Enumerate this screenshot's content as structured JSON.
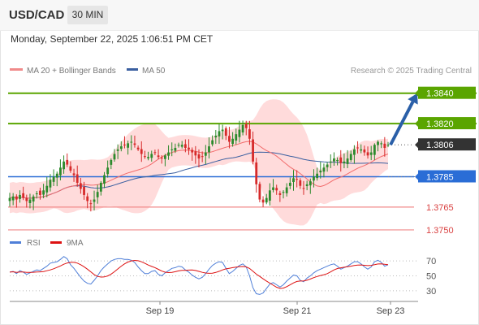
{
  "header": {
    "symbol": "USD/CAD",
    "timeframe": "30 MIN",
    "datetime": "Monday, September 22, 2025 1:06:51 PM CET"
  },
  "legend": {
    "ma20_label": "MA 20 + Bollinger Bands",
    "ma50_label": "MA 50",
    "credit": "Research © 2025 Trading Central"
  },
  "colors": {
    "resistance": "#5aa500",
    "support": "#f08a8a",
    "pivot": "#2a6dd6",
    "current": "#333333",
    "arrow": "#2a5fa8",
    "candle_up": "#2c8a2c",
    "candle_down": "#d62a2a",
    "ma20": "#f26b6b",
    "ma50": "#3a5fa0",
    "bands": "#ffd2d2",
    "rsi": "#4f7fd8",
    "rsi_ma": "#dd1111"
  },
  "chart_data": [
    {
      "type": "candlestick",
      "title": "USD/CAD 30 MIN",
      "ylim": [
        1.3743,
        1.385
      ],
      "x_ticks": [
        "Sep 19",
        "Sep 21",
        "Sep 23"
      ],
      "legend": [
        "MA 20 + Bollinger Bands",
        "MA 50"
      ],
      "levels": [
        {
          "value": 1.384,
          "label": "1.3840",
          "kind": "resistance"
        },
        {
          "value": 1.382,
          "label": "1.3820",
          "kind": "resistance"
        },
        {
          "value": 1.3806,
          "label": "1.3806",
          "kind": "current"
        },
        {
          "value": 1.3785,
          "label": "1.3785",
          "kind": "pivot"
        },
        {
          "value": 1.3765,
          "label": "1.3765",
          "kind": "support"
        },
        {
          "value": 1.375,
          "label": "1.3750",
          "kind": "support"
        }
      ],
      "close_series": [
        1.3771,
        1.3772,
        1.377,
        1.3773,
        1.3771,
        1.3769,
        1.377,
        1.3772,
        1.3774,
        1.3773,
        1.3776,
        1.3779,
        1.3783,
        1.3785,
        1.3787,
        1.3791,
        1.3795,
        1.3793,
        1.3789,
        1.3786,
        1.3781,
        1.3777,
        1.3773,
        1.3769,
        1.3767,
        1.377,
        1.3775,
        1.3781,
        1.3786,
        1.3791,
        1.3796,
        1.38,
        1.3803,
        1.3805,
        1.3806,
        1.3807,
        1.3808,
        1.3806,
        1.3803,
        1.38,
        1.3798,
        1.3798,
        1.38,
        1.3801,
        1.3798,
        1.3797,
        1.3799,
        1.3801,
        1.3803,
        1.3804,
        1.3806,
        1.3806,
        1.3804,
        1.3803,
        1.3801,
        1.3799,
        1.3797,
        1.3798,
        1.3801,
        1.3805,
        1.3809,
        1.3812,
        1.3815,
        1.3816,
        1.3812,
        1.3808,
        1.381,
        1.3813,
        1.3816,
        1.3819,
        1.3817,
        1.381,
        1.3795,
        1.378,
        1.377,
        1.3768,
        1.3771,
        1.3776,
        1.3778,
        1.3776,
        1.3773,
        1.3775,
        1.3778,
        1.3781,
        1.3784,
        1.3783,
        1.3779,
        1.3777,
        1.378,
        1.3782,
        1.3785,
        1.3787,
        1.3789,
        1.3791,
        1.3793,
        1.3795,
        1.3797,
        1.3796,
        1.3794,
        1.3795,
        1.3797,
        1.38,
        1.3803,
        1.3804,
        1.3803,
        1.3801,
        1.3799,
        1.3801,
        1.3806,
        1.3808,
        1.3807,
        1.3804,
        1.3806
      ],
      "rsi": {
        "label": "RSI",
        "ma_label": "9MA",
        "ylim": [
          20,
          80
        ],
        "ticks": [
          70,
          50,
          30
        ],
        "values": [
          55,
          56,
          53,
          57,
          55,
          52,
          54,
          56,
          58,
          57,
          60,
          63,
          67,
          68,
          69,
          72,
          76,
          73,
          65,
          60,
          54,
          48,
          43,
          40,
          39,
          44,
          50,
          57,
          62,
          66,
          70,
          72,
          73,
          73,
          72,
          72,
          71,
          68,
          62,
          57,
          53,
          53,
          56,
          57,
          52,
          50,
          54,
          57,
          60,
          61,
          63,
          62,
          58,
          55,
          51,
          48,
          46,
          48,
          53,
          59,
          64,
          67,
          69,
          68,
          60,
          53,
          56,
          60,
          64,
          66,
          62,
          50,
          34,
          26,
          25,
          27,
          33,
          39,
          41,
          38,
          35,
          38,
          43,
          47,
          51,
          50,
          44,
          42,
          47,
          50,
          54,
          57,
          59,
          61,
          63,
          65,
          66,
          63,
          59,
          61,
          63,
          66,
          69,
          69,
          66,
          62,
          59,
          62,
          69,
          71,
          68,
          63,
          65
        ]
      }
    }
  ]
}
